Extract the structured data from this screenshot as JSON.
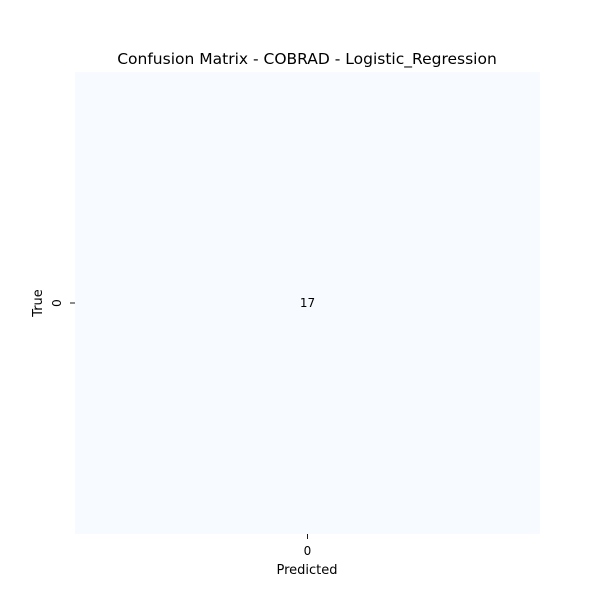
{
  "chart_data": {
    "type": "heatmap",
    "title": "Confusion Matrix - COBRAD - Logistic_Regression",
    "xlabel": "Predicted",
    "ylabel": "True",
    "x_categories": [
      "0"
    ],
    "y_categories": [
      "0"
    ],
    "values": [
      [
        17
      ]
    ],
    "colormap": "Blues",
    "cell_color": "#f7fbff",
    "colorbar": false,
    "grid": false,
    "legend": "none"
  }
}
